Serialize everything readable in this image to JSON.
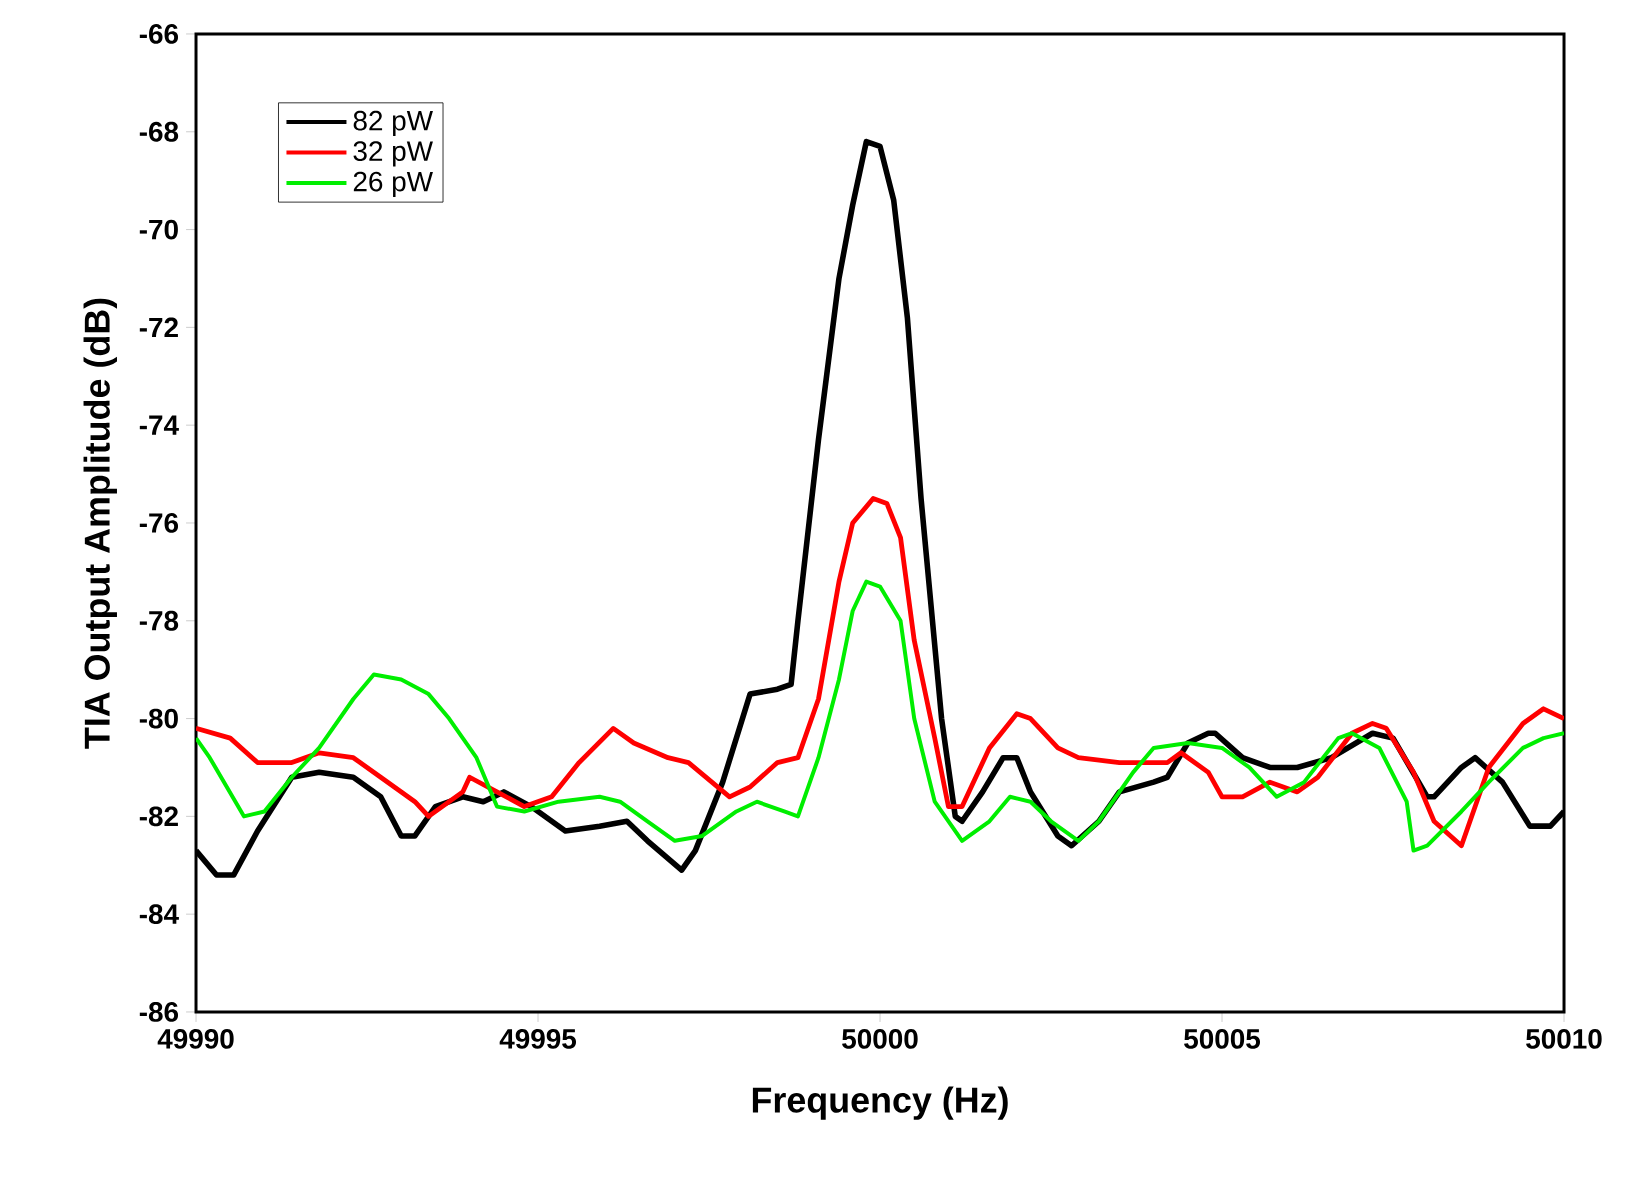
{
  "chart_data": {
    "type": "line",
    "xlabel": "Frequency (Hz)",
    "ylabel": "TIA Output Amplitude (dB)",
    "xlim": [
      49990,
      50010
    ],
    "xticks": [
      49990,
      49995,
      50000,
      50005,
      50010
    ],
    "ylim": [
      -86,
      -66
    ],
    "yticks": [
      -86,
      -84,
      -82,
      -80,
      -78,
      -76,
      -74,
      -72,
      -70,
      -68,
      -66
    ],
    "grid": false,
    "legend": "top left",
    "marker": "none",
    "line_style": "solid",
    "series": [
      {
        "name": "82 pW",
        "color": "#000000",
        "x": [
          49990,
          49990.3,
          49990.55,
          49990.9,
          49991.4,
          49991.8,
          49992.3,
          49992.7,
          49993.0,
          49993.2,
          49993.5,
          49993.9,
          49994.2,
          49994.5,
          49994.9,
          49995.4,
          49995.9,
          49996.3,
          49996.6,
          49997.1,
          49997.3,
          49997.7,
          49998.1,
          49998.5,
          49998.7,
          49998.8,
          49999.1,
          49999.4,
          49999.6,
          49999.8,
          50000.0,
          50000.2,
          50000.4,
          50000.6,
          50000.9,
          50001.1,
          50001.2,
          50001.5,
          50001.8,
          50002.0,
          50002.2,
          50002.6,
          50002.8,
          50003.2,
          50003.5,
          50004.0,
          50004.2,
          50004.5,
          50004.8,
          50004.9,
          50005.3,
          50005.7,
          50006.1,
          50006.6,
          50007.2,
          50007.5,
          50008.0,
          50008.1,
          50008.5,
          50008.7,
          50009.1,
          50009.5,
          50009.8,
          50010
        ],
        "values": [
          -82.7,
          -83.2,
          -83.2,
          -82.3,
          -81.2,
          -81.1,
          -81.2,
          -81.6,
          -82.4,
          -82.4,
          -81.8,
          -81.6,
          -81.7,
          -81.5,
          -81.8,
          -82.3,
          -82.2,
          -82.1,
          -82.5,
          -83.1,
          -82.7,
          -81.3,
          -79.5,
          -79.4,
          -79.3,
          -78.0,
          -74.3,
          -71.0,
          -69.5,
          -68.2,
          -68.3,
          -69.4,
          -71.8,
          -75.5,
          -80.0,
          -82.0,
          -82.1,
          -81.5,
          -80.8,
          -80.8,
          -81.5,
          -82.4,
          -82.6,
          -82.1,
          -81.5,
          -81.3,
          -81.2,
          -80.5,
          -80.3,
          -80.3,
          -80.8,
          -81.0,
          -81.0,
          -80.8,
          -80.3,
          -80.4,
          -81.6,
          -81.6,
          -81.0,
          -80.8,
          -81.3,
          -82.2,
          -82.2,
          -81.9
        ]
      },
      {
        "name": "32 pW",
        "color": "#ff0000",
        "x": [
          49990,
          49990.5,
          49990.9,
          49991.4,
          49991.8,
          49992.3,
          49992.7,
          49993.2,
          49993.4,
          49993.9,
          49994.0,
          49994.4,
          49994.8,
          49995.2,
          49995.6,
          49996.1,
          49996.4,
          49996.9,
          49997.2,
          49997.8,
          49998.1,
          49998.5,
          49998.8,
          49999.1,
          49999.4,
          49999.6,
          49999.9,
          50000.1,
          50000.3,
          50000.5,
          50000.8,
          50001.0,
          50001.2,
          50001.6,
          50002.0,
          50002.2,
          50002.6,
          50002.9,
          50003.5,
          50004.2,
          50004.4,
          50004.8,
          50005.0,
          50005.3,
          50005.7,
          50006.1,
          50006.4,
          50006.9,
          50007.2,
          50007.4,
          50007.8,
          50008.1,
          50008.5,
          50008.9,
          50009.4,
          50009.7,
          50010
        ],
        "values": [
          -80.2,
          -80.4,
          -80.9,
          -80.9,
          -80.7,
          -80.8,
          -81.2,
          -81.7,
          -82.0,
          -81.5,
          -81.2,
          -81.5,
          -81.8,
          -81.6,
          -80.9,
          -80.2,
          -80.5,
          -80.8,
          -80.9,
          -81.6,
          -81.4,
          -80.9,
          -80.8,
          -79.6,
          -77.2,
          -76.0,
          -75.5,
          -75.6,
          -76.3,
          -78.4,
          -80.4,
          -81.8,
          -81.8,
          -80.6,
          -79.9,
          -80.0,
          -80.6,
          -80.8,
          -80.9,
          -80.9,
          -80.7,
          -81.1,
          -81.6,
          -81.6,
          -81.3,
          -81.5,
          -81.2,
          -80.3,
          -80.1,
          -80.2,
          -81.1,
          -82.1,
          -82.6,
          -81.0,
          -80.1,
          -79.8,
          -80.0
        ]
      },
      {
        "name": "26 pW",
        "color": "#00ee00",
        "x": [
          49990,
          49990.2,
          49990.7,
          49991.0,
          49991.4,
          49991.8,
          49992.3,
          49992.6,
          49993.0,
          49993.4,
          49993.7,
          49994.1,
          49994.4,
          49994.8,
          49995.3,
          49995.9,
          49996.2,
          49996.6,
          49997.0,
          49997.4,
          49997.9,
          49998.2,
          49998.6,
          49998.8,
          49999.1,
          49999.4,
          49999.6,
          49999.8,
          50000.0,
          50000.3,
          50000.5,
          50000.8,
          50001.2,
          50001.6,
          50001.9,
          50002.2,
          50002.5,
          50002.9,
          50003.2,
          50003.7,
          50004.0,
          50004.5,
          50005.0,
          50005.4,
          50005.8,
          50006.2,
          50006.7,
          50006.9,
          50007.3,
          50007.7,
          50007.8,
          50008.0,
          50008.5,
          50008.9,
          50009.4,
          50009.7,
          50010
        ],
        "values": [
          -80.4,
          -80.8,
          -82.0,
          -81.9,
          -81.2,
          -80.6,
          -79.6,
          -79.1,
          -79.2,
          -79.5,
          -80.0,
          -80.8,
          -81.8,
          -81.9,
          -81.7,
          -81.6,
          -81.7,
          -82.1,
          -82.5,
          -82.4,
          -81.9,
          -81.7,
          -81.9,
          -82.0,
          -80.8,
          -79.2,
          -77.8,
          -77.2,
          -77.3,
          -78.0,
          -80.0,
          -81.7,
          -82.5,
          -82.1,
          -81.6,
          -81.7,
          -82.1,
          -82.5,
          -82.1,
          -81.1,
          -80.6,
          -80.5,
          -80.6,
          -81.0,
          -81.6,
          -81.3,
          -80.4,
          -80.3,
          -80.6,
          -81.7,
          -82.7,
          -82.6,
          -81.9,
          -81.3,
          -80.6,
          -80.4,
          -80.3
        ]
      }
    ]
  }
}
